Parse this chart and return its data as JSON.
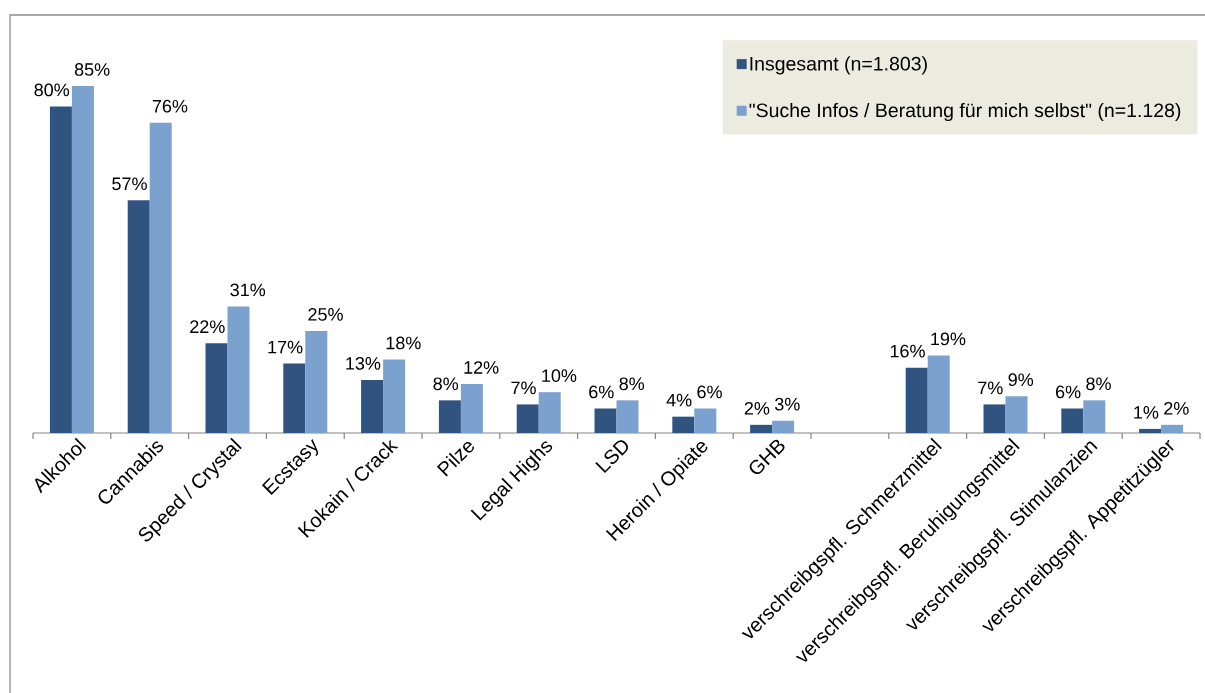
{
  "chart_data": {
    "type": "bar",
    "categories": [
      "Alkohol",
      "Cannabis",
      "Speed / Crystal",
      "Ecstasy",
      "Kokain / Crack",
      "Pilze",
      "Legal Highs",
      "LSD",
      "Heroin / Opiate",
      "GHB",
      null,
      "verschreibgspfl. Schmerzmittel",
      "verschreibgspfl. Beruhigungsmittel",
      "verschreibgspfl. Stimulanzien",
      "verschreibgspfl. Appetitzügler"
    ],
    "series": [
      {
        "name": "Insgesamt (n=1.803)",
        "color": "#30547f",
        "values": [
          80,
          57,
          22,
          17,
          13,
          8,
          7,
          6,
          4,
          2,
          null,
          16,
          7,
          6,
          1
        ],
        "value_labels": [
          "80%",
          "57%",
          "22%",
          "17%",
          "13%",
          "8%",
          "7%",
          "6%",
          "4%",
          "2%",
          null,
          "16%",
          "7%",
          "6%",
          "1%"
        ]
      },
      {
        "name": "\"Suche Infos / Beratung für mich selbst\" (n=1.128)",
        "color": "#7ba1cf",
        "values": [
          85,
          76,
          31,
          25,
          18,
          12,
          10,
          8,
          6,
          3,
          null,
          19,
          9,
          8,
          2
        ],
        "value_labels": [
          "85%",
          "76%",
          "31%",
          "25%",
          "18%",
          "12%",
          "10%",
          "8%",
          "6%",
          "3%",
          null,
          "19%",
          "9%",
          "8%",
          "2%"
        ]
      }
    ],
    "legend": "top right"
  }
}
